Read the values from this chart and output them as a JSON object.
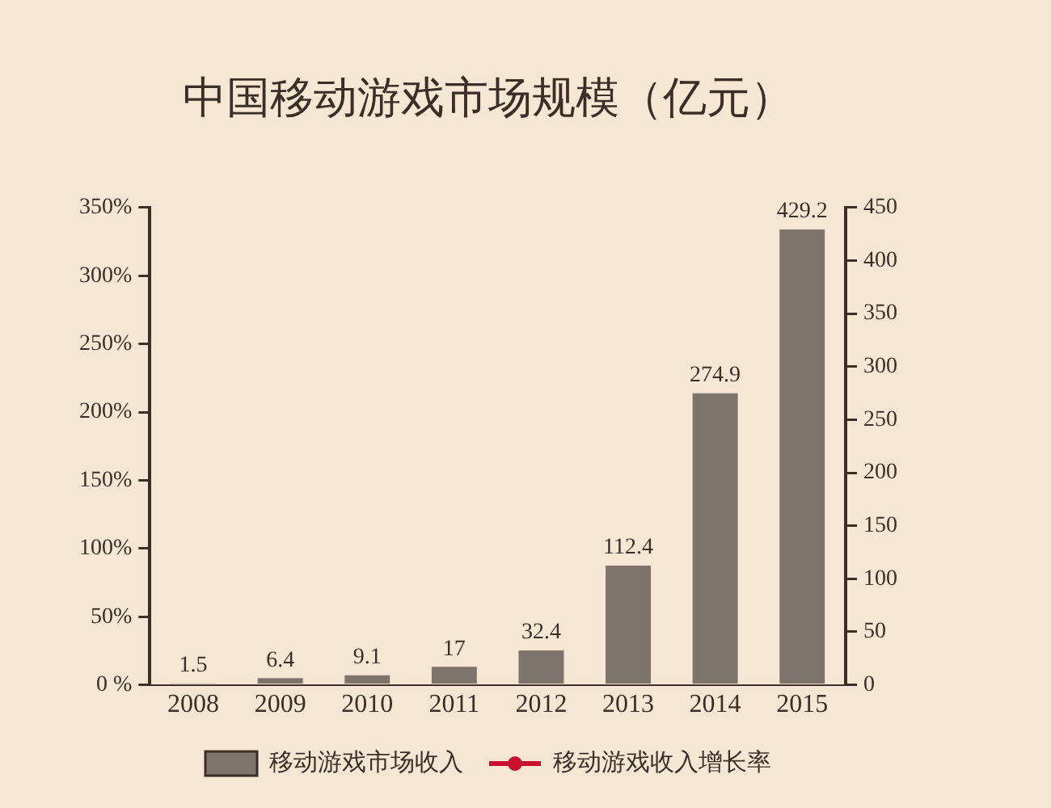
{
  "chart_data": {
    "type": "bar",
    "title": "中国移动游戏市场规模（亿元）",
    "categories": [
      "2008",
      "2009",
      "2010",
      "2011",
      "2012",
      "2013",
      "2014",
      "2015"
    ],
    "series": [
      {
        "name": "移动游戏市场收入",
        "axis": "y2",
        "color": "#7f746b",
        "values": [
          1.5,
          6.4,
          9.1,
          17,
          32.4,
          112.4,
          274.9,
          429.2
        ]
      },
      {
        "name": "移动游戏收入增长率",
        "type": "line",
        "axis": "y",
        "color": "#c8102e",
        "marker": "circle",
        "values": [
          null,
          null,
          null,
          null,
          null,
          null,
          null,
          null
        ]
      }
    ],
    "ylim": [
      0,
      350
    ],
    "yticks": [
      {
        "value": 0,
        "label": "0 %"
      },
      {
        "value": 50,
        "label": "50%"
      },
      {
        "value": 100,
        "label": "100%"
      },
      {
        "value": 150,
        "label": "150%"
      },
      {
        "value": 200,
        "label": "200%"
      },
      {
        "value": 250,
        "label": "250%"
      },
      {
        "value": 300,
        "label": "300%"
      },
      {
        "value": 350,
        "label": "350%"
      }
    ],
    "y2lim": [
      0,
      450
    ],
    "y2ticks": [
      0,
      50,
      100,
      150,
      200,
      250,
      300,
      350,
      400,
      450
    ],
    "data_labels": true,
    "legend": "bottom",
    "grid": false
  }
}
